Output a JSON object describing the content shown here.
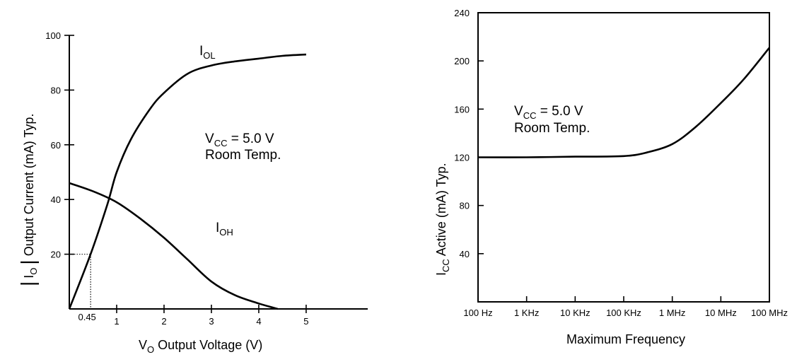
{
  "chart_data": [
    {
      "type": "line",
      "xlabel": {
        "main": "V",
        "sub": "O",
        "rest": " Output Voltage (V)"
      },
      "ylabel": {
        "abs_left": "|",
        "main": "I",
        "sub": "O",
        "abs_right": "|",
        "rest": " Output Current (mA) Typ."
      },
      "xlim": [
        0,
        6.3
      ],
      "ylim": [
        0,
        100
      ],
      "x_ticks": [
        0.45,
        1,
        2,
        3,
        4,
        5
      ],
      "x_tick_labels": [
        "0.45",
        "1",
        "2",
        "3",
        "4",
        "5"
      ],
      "y_ticks": [
        20,
        40,
        60,
        80,
        100
      ],
      "y_tick_labels": [
        "20",
        "40",
        "60",
        "80",
        "100"
      ],
      "marker": {
        "x": 0.45,
        "y": 20,
        "style": "dotted"
      },
      "annotation": {
        "line1_main": "V",
        "line1_sub": "CC",
        "line1_rest": " = 5.0 V",
        "line2": "Room Temp."
      },
      "series": [
        {
          "name_main": "I",
          "name_sub": "OL",
          "x": [
            0,
            0.45,
            0.8,
            1.0,
            1.3,
            1.7,
            2.0,
            2.5,
            3.0,
            3.5,
            4.0,
            4.5,
            5.0
          ],
          "y": [
            0,
            20,
            38,
            50,
            62,
            73,
            79,
            86,
            89,
            90.5,
            91.5,
            92.5,
            93
          ]
        },
        {
          "name_main": "I",
          "name_sub": "OH",
          "x": [
            0,
            0.5,
            1.0,
            1.5,
            2.0,
            2.5,
            3.0,
            3.5,
            4.0,
            4.4
          ],
          "y": [
            46,
            43,
            39,
            33,
            26,
            18,
            10,
            5,
            2,
            0
          ]
        }
      ]
    },
    {
      "type": "line",
      "xlabel": "Maximum Frequency",
      "ylabel": {
        "main": "I",
        "sub": "CC",
        "rest": " Active (mA) Typ."
      },
      "xscale": "log",
      "x_tick_labels": [
        "100 Hz",
        "1 KHz",
        "10 KHz",
        "100 KHz",
        "1 MHz",
        "10 MHz",
        "100 MHz"
      ],
      "x_ticks_hz": [
        100,
        1000,
        10000,
        100000,
        1000000,
        10000000,
        100000000
      ],
      "ylim": [
        0,
        240
      ],
      "y_ticks": [
        40,
        80,
        120,
        160,
        200,
        240
      ],
      "y_tick_labels": [
        "40",
        "80",
        "120",
        "160",
        "200",
        "240"
      ],
      "annotation": {
        "line1_main": "V",
        "line1_sub": "CC",
        "line1_rest": " = 5.0 V",
        "line2": "Room Temp."
      },
      "series": [
        {
          "x": [
            100,
            1000,
            10000,
            100000,
            300000,
            1000000,
            3000000,
            10000000,
            30000000,
            100000000
          ],
          "y": [
            120,
            120,
            120.5,
            121,
            124,
            131,
            145,
            165,
            185,
            211
          ]
        }
      ]
    }
  ]
}
